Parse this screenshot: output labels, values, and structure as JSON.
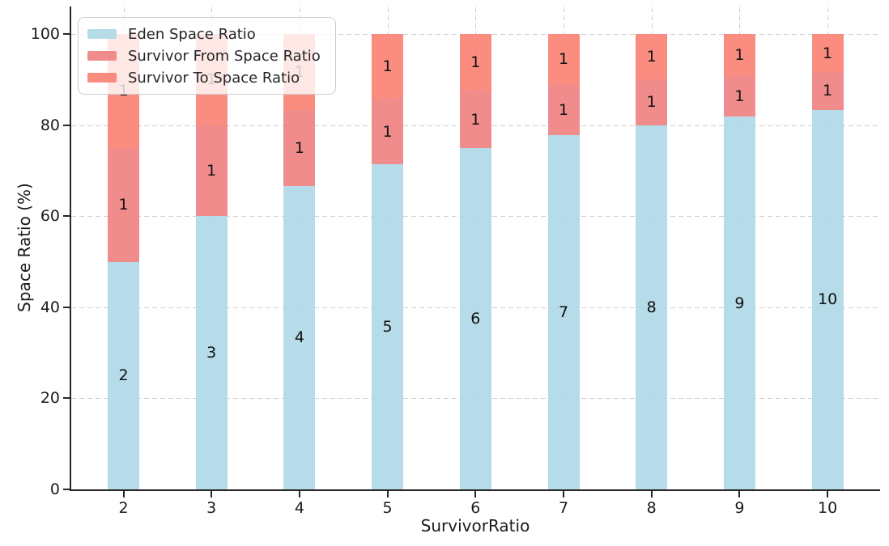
{
  "figure": {
    "background": "#ffffff",
    "text_color": "#1c1c1c"
  },
  "legend": {
    "position": "upper left",
    "items": [
      {
        "label": "Eden Space Ratio",
        "color": "#ADD8E6"
      },
      {
        "label": "Survivor From Space Ratio",
        "color": "#F08080"
      },
      {
        "label": "Survivor To Space Ratio",
        "color": "#FA8072"
      }
    ]
  },
  "chart_data": {
    "type": "bar",
    "stacked": true,
    "title": "",
    "xlabel": "SurvivorRatio",
    "ylabel": "Space Ratio (%)",
    "categories": [
      "2",
      "3",
      "4",
      "5",
      "6",
      "7",
      "8",
      "9",
      "10"
    ],
    "yticks": [
      0,
      20,
      40,
      60,
      80,
      100
    ],
    "ytick_labels": [
      "0",
      "20",
      "40",
      "60",
      "80",
      "100"
    ],
    "ylim": [
      0,
      106
    ],
    "grid": true,
    "grid_style": "dashed",
    "grid_color": "#cfcfcf",
    "spine_color": "#262626",
    "bar_alpha": 0.9,
    "legend_position": "upper left",
    "series": [
      {
        "name": "Eden Space Ratio",
        "color": "#ADD8E6",
        "values": [
          50.0,
          60.0,
          66.67,
          71.43,
          75.0,
          77.78,
          80.0,
          81.82,
          83.33
        ],
        "labels": [
          "2",
          "3",
          "4",
          "5",
          "6",
          "7",
          "8",
          "9",
          "10"
        ]
      },
      {
        "name": "Survivor From Space Ratio",
        "color": "#F08080",
        "values": [
          25.0,
          20.0,
          16.67,
          14.29,
          12.5,
          11.11,
          10.0,
          9.09,
          8.33
        ],
        "labels": [
          "1",
          "1",
          "1",
          "1",
          "1",
          "1",
          "1",
          "1",
          "1"
        ]
      },
      {
        "name": "Survivor To Space Ratio",
        "color": "#FA8072",
        "values": [
          25.0,
          20.0,
          16.67,
          14.29,
          12.5,
          11.11,
          10.0,
          9.09,
          8.33
        ],
        "labels": [
          "1",
          "1",
          "1",
          "1",
          "1",
          "1",
          "1",
          "1",
          "1"
        ]
      }
    ]
  }
}
